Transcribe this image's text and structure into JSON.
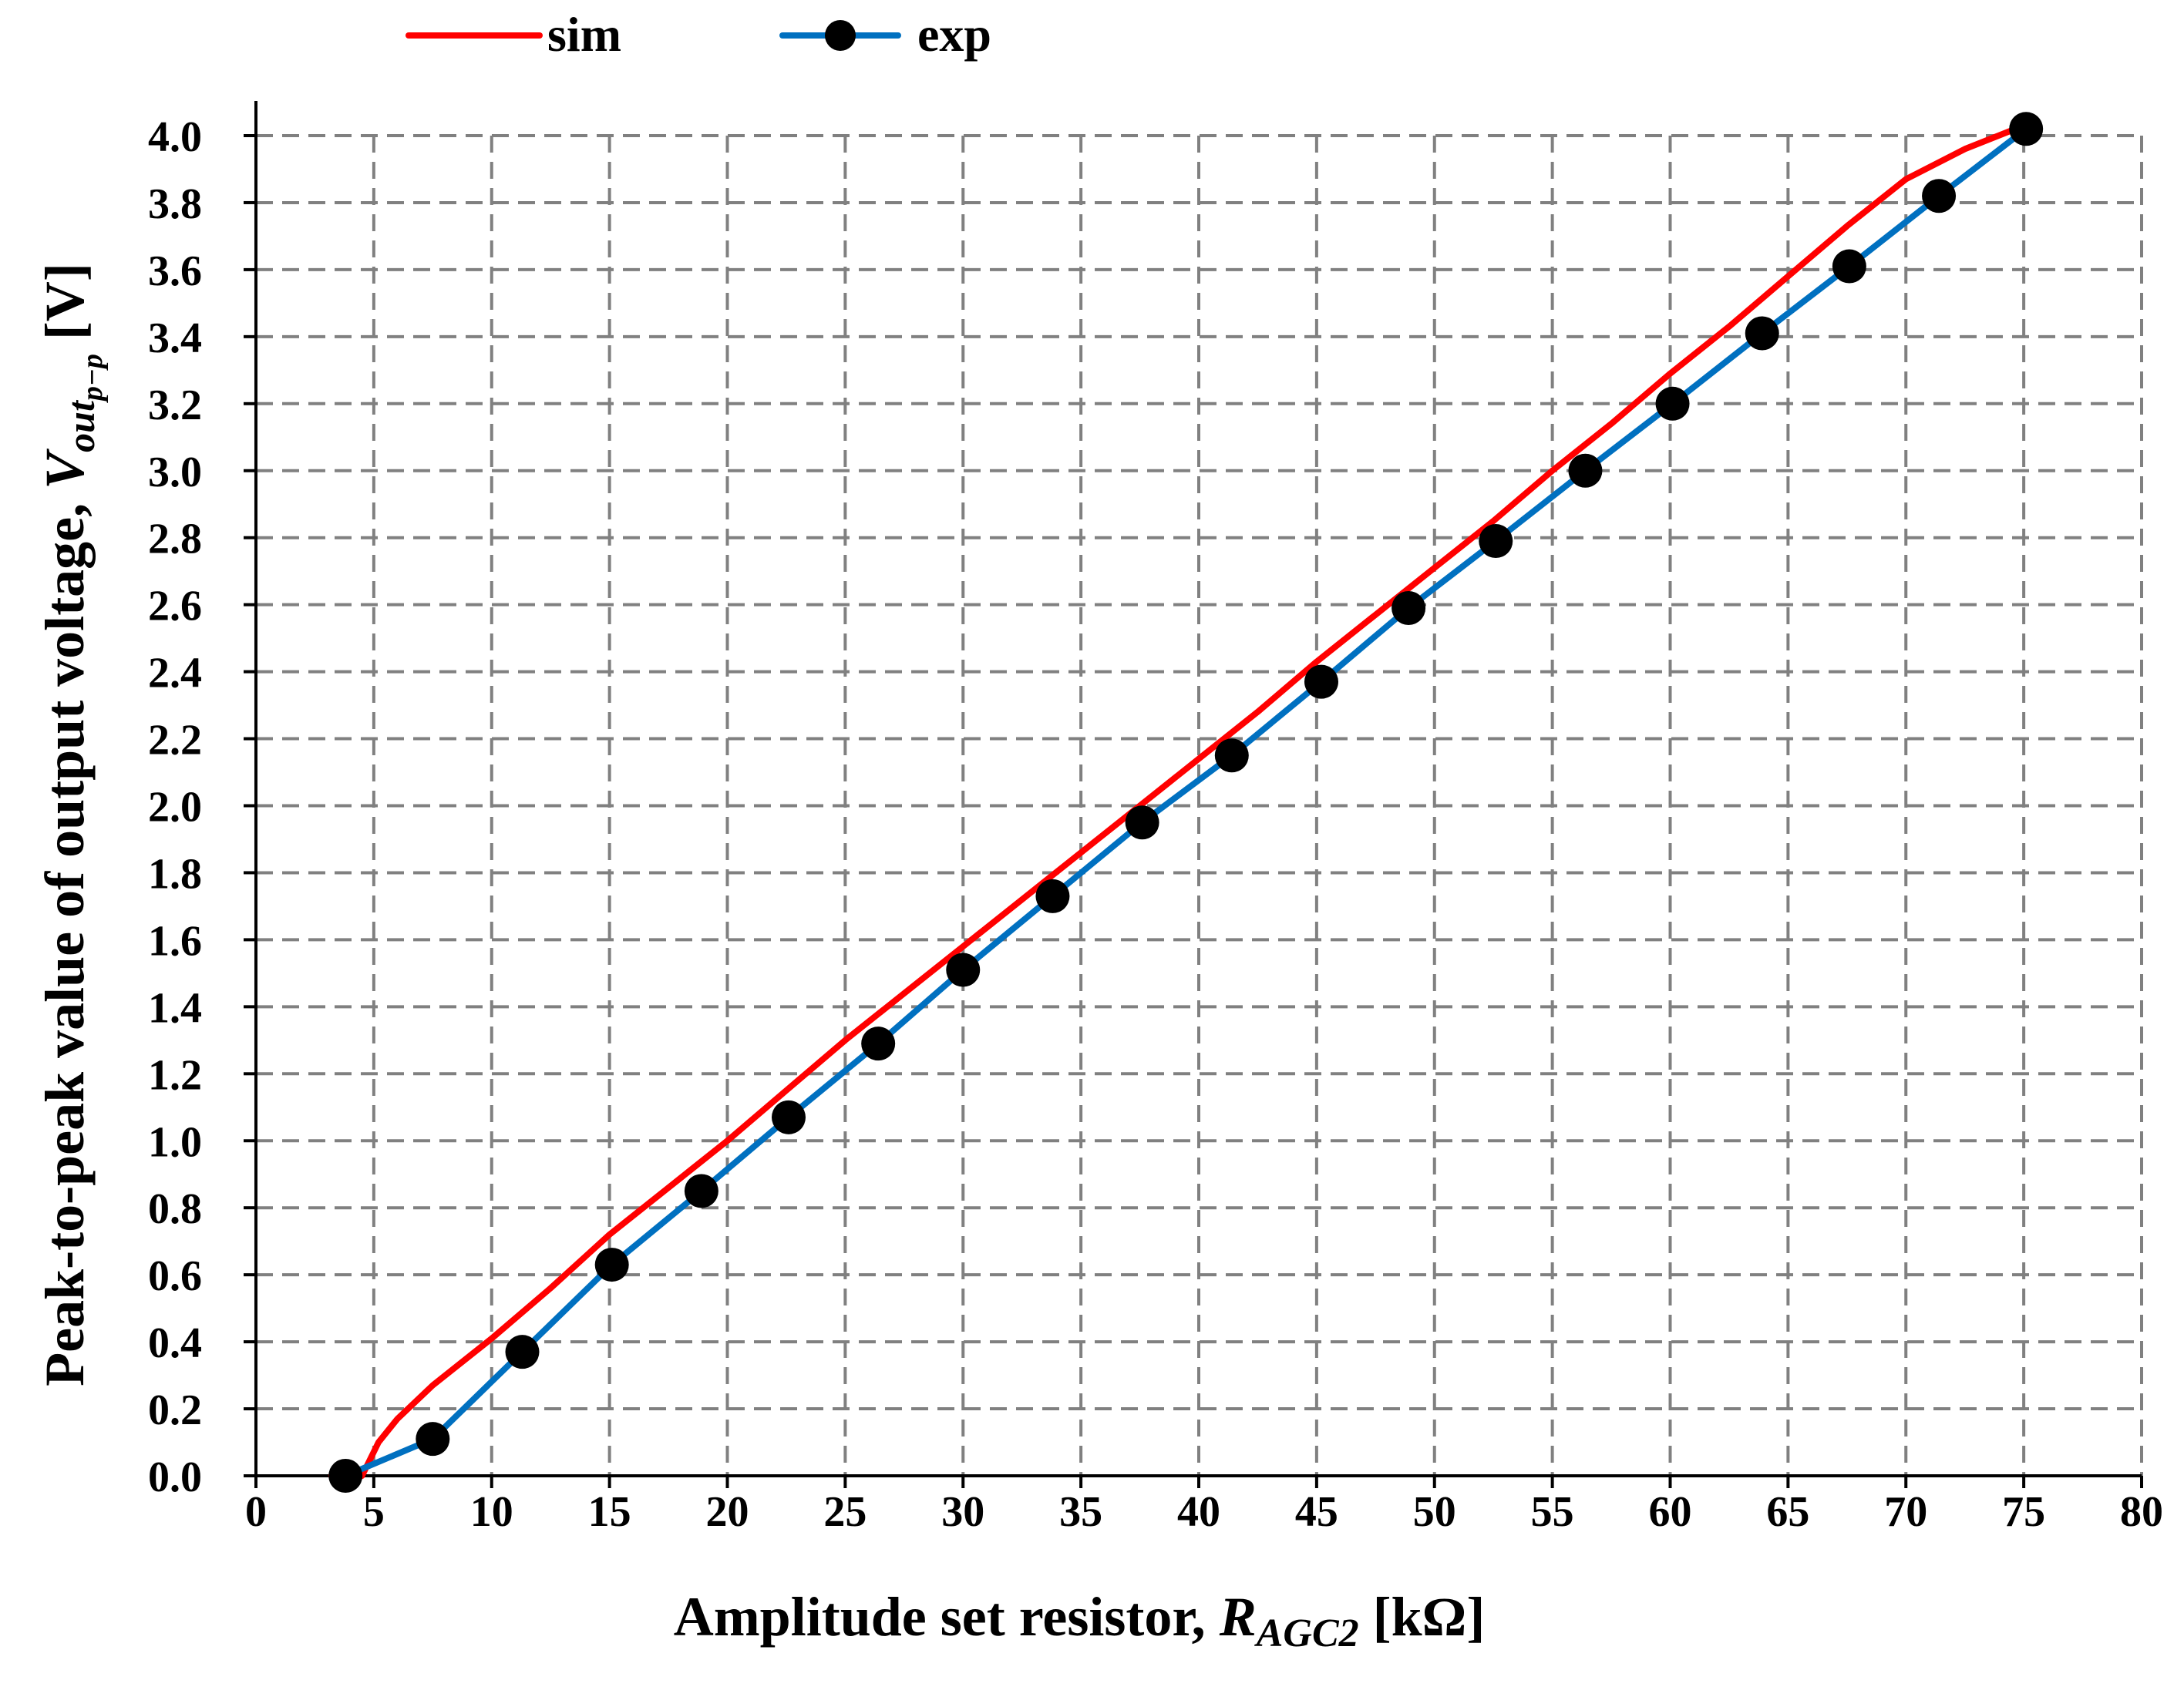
{
  "chart_data": {
    "type": "line",
    "xlabel_main": "Amplitude set resistor, ",
    "xlabel_symbol": "R",
    "xlabel_sub": "AGC2",
    "xlabel_unit": " [kΩ]",
    "ylabel_main": "Peak-to-peak value of output voltage, ",
    "ylabel_symbol": "V",
    "ylabel_sub": "out",
    "ylabel_subsub": "p−p",
    "ylabel_unit": " [V]",
    "xlim": [
      0,
      80
    ],
    "ylim": [
      0,
      4.0
    ],
    "xticks": [
      "0",
      "5",
      "10",
      "15",
      "20",
      "25",
      "30",
      "35",
      "40",
      "45",
      "50",
      "55",
      "60",
      "65",
      "70",
      "75",
      "80"
    ],
    "yticks": [
      "0.0",
      "0.2",
      "0.4",
      "0.6",
      "0.8",
      "1.0",
      "1.2",
      "1.4",
      "1.6",
      "1.8",
      "2.0",
      "2.2",
      "2.4",
      "2.6",
      "2.8",
      "3.0",
      "3.2",
      "3.4",
      "3.6",
      "3.8",
      "4.0"
    ],
    "grid": true,
    "legend_position": "top",
    "series": [
      {
        "name": "sim",
        "color": "#ff0000",
        "marker": "none",
        "x": [
          3.2,
          4.5,
          5.2,
          6,
          7.5,
          10,
          12.5,
          15,
          17.5,
          20,
          22.5,
          25,
          27.5,
          30,
          32.5,
          35,
          37.5,
          40,
          42.5,
          45,
          47.5,
          50,
          52.5,
          55,
          57.5,
          60,
          62.5,
          65,
          67.5,
          70,
          72.5,
          75
        ],
        "y": [
          0.0,
          0.0,
          0.1,
          0.17,
          0.27,
          0.41,
          0.56,
          0.72,
          0.86,
          1.0,
          1.15,
          1.3,
          1.44,
          1.58,
          1.72,
          1.86,
          2.0,
          2.14,
          2.28,
          2.43,
          2.57,
          2.71,
          2.85,
          3.0,
          3.14,
          3.29,
          3.43,
          3.58,
          3.73,
          3.87,
          3.96,
          4.03
        ]
      },
      {
        "name": "exp",
        "color": "#0070c0",
        "marker": "circle",
        "x": [
          3.8,
          7.5,
          11.3,
          15.1,
          18.9,
          22.6,
          26.4,
          30.0,
          33.8,
          37.6,
          41.4,
          45.2,
          48.9,
          52.6,
          56.4,
          60.1,
          63.9,
          67.6,
          71.4,
          75.1
        ],
        "y": [
          0.0,
          0.11,
          0.37,
          0.63,
          0.85,
          1.07,
          1.29,
          1.51,
          1.73,
          1.95,
          2.15,
          2.37,
          2.59,
          2.79,
          3.0,
          3.2,
          3.41,
          3.61,
          3.82,
          4.02
        ]
      }
    ]
  }
}
